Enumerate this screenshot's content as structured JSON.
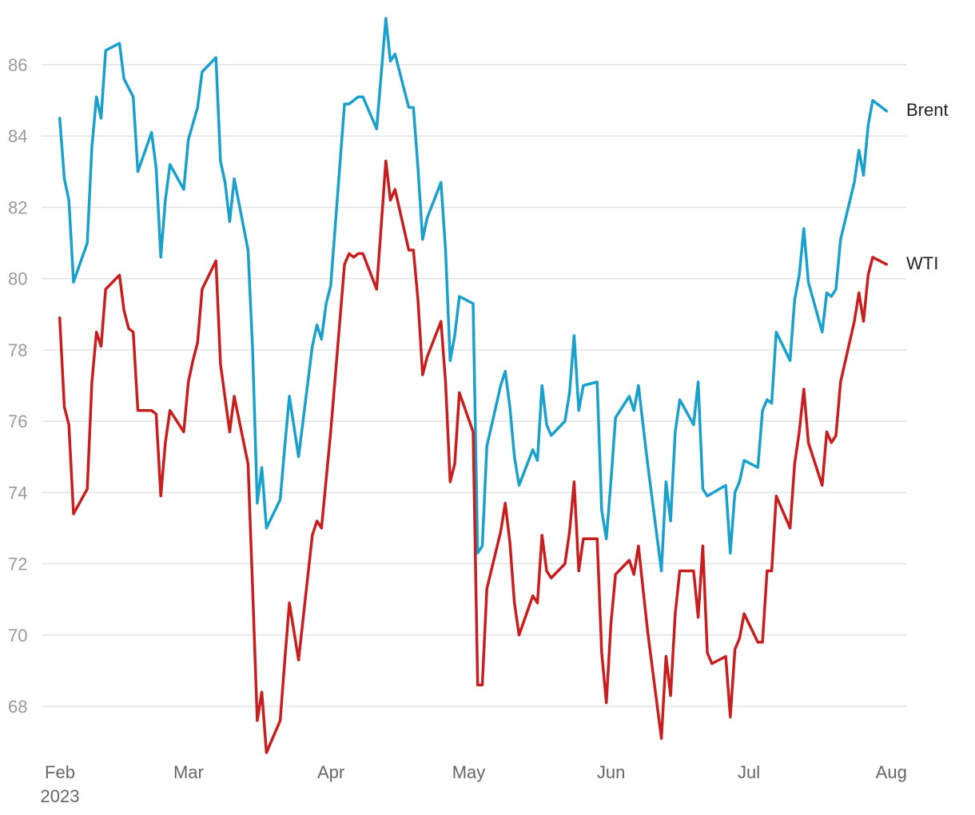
{
  "chart_data": {
    "type": "line",
    "title": "",
    "xlabel": "",
    "ylabel": "",
    "year_label": "2023",
    "x_ticks": [
      "Feb",
      "Mar",
      "Apr",
      "May",
      "Jun",
      "Jul",
      "Aug"
    ],
    "y_ticks": [
      68,
      70,
      72,
      74,
      76,
      78,
      80,
      82,
      84,
      86
    ],
    "ylim": [
      66.7,
      87.3
    ],
    "xlim": [
      0,
      182
    ],
    "grid": true,
    "x_unit": "days since Feb 1, 2023",
    "colors": {
      "Brent": "#1aa0cc",
      "WTI": "#c81e1e"
    },
    "series": [
      {
        "name": "Brent",
        "points": [
          [
            1,
            84.5
          ],
          [
            2,
            82.8
          ],
          [
            3,
            82.2
          ],
          [
            4,
            79.9
          ],
          [
            7,
            81.0
          ],
          [
            8,
            83.7
          ],
          [
            9,
            85.1
          ],
          [
            10,
            84.5
          ],
          [
            11,
            86.4
          ],
          [
            14,
            86.6
          ],
          [
            15,
            85.6
          ],
          [
            17,
            85.1
          ],
          [
            18,
            83.0
          ],
          [
            21,
            84.1
          ],
          [
            22,
            83.1
          ],
          [
            23,
            80.6
          ],
          [
            24,
            82.2
          ],
          [
            25,
            83.2
          ],
          [
            28,
            82.5
          ],
          [
            29,
            83.9
          ],
          [
            31,
            84.8
          ],
          [
            32,
            85.8
          ],
          [
            35,
            86.2
          ],
          [
            36,
            83.3
          ],
          [
            37,
            82.7
          ],
          [
            38,
            81.6
          ],
          [
            39,
            82.8
          ],
          [
            42,
            80.8
          ],
          [
            43,
            78.0
          ],
          [
            44,
            73.7
          ],
          [
            45,
            74.7
          ],
          [
            46,
            73.0
          ],
          [
            49,
            73.8
          ],
          [
            50,
            75.3
          ],
          [
            51,
            76.7
          ],
          [
            53,
            75.0
          ],
          [
            56,
            78.1
          ],
          [
            57,
            78.7
          ],
          [
            58,
            78.3
          ],
          [
            59,
            79.3
          ],
          [
            60,
            79.8
          ],
          [
            63,
            84.9
          ],
          [
            64,
            84.9
          ],
          [
            65,
            85.0
          ],
          [
            66,
            85.1
          ],
          [
            67,
            85.1
          ],
          [
            70,
            84.2
          ],
          [
            72,
            87.3
          ],
          [
            73,
            86.1
          ],
          [
            74,
            86.3
          ],
          [
            77,
            84.8
          ],
          [
            78,
            84.8
          ],
          [
            79,
            83.1
          ],
          [
            80,
            81.1
          ],
          [
            81,
            81.7
          ],
          [
            84,
            82.7
          ],
          [
            85,
            80.8
          ],
          [
            86,
            77.7
          ],
          [
            87,
            78.4
          ],
          [
            88,
            79.5
          ],
          [
            91,
            79.3
          ],
          [
            92,
            72.3
          ],
          [
            93,
            72.5
          ],
          [
            94,
            75.3
          ],
          [
            97,
            77.0
          ],
          [
            98,
            77.4
          ],
          [
            99,
            76.4
          ],
          [
            100,
            75.0
          ],
          [
            101,
            74.2
          ],
          [
            104,
            75.2
          ],
          [
            105,
            74.9
          ],
          [
            106,
            77.0
          ],
          [
            107,
            75.9
          ],
          [
            108,
            75.6
          ],
          [
            111,
            76.0
          ],
          [
            112,
            76.8
          ],
          [
            113,
            78.4
          ],
          [
            114,
            76.3
          ],
          [
            115,
            77.0
          ],
          [
            118,
            77.1
          ],
          [
            119,
            73.5
          ],
          [
            120,
            72.7
          ],
          [
            121,
            74.3
          ],
          [
            122,
            76.1
          ],
          [
            125,
            76.7
          ],
          [
            126,
            76.3
          ],
          [
            127,
            77.0
          ],
          [
            128,
            75.9
          ],
          [
            129,
            74.8
          ],
          [
            132,
            71.8
          ],
          [
            133,
            74.3
          ],
          [
            134,
            73.2
          ],
          [
            135,
            75.7
          ],
          [
            136,
            76.6
          ],
          [
            139,
            75.9
          ],
          [
            140,
            77.1
          ],
          [
            141,
            74.1
          ],
          [
            142,
            73.9
          ],
          [
            146,
            74.2
          ],
          [
            147,
            72.3
          ],
          [
            148,
            74.0
          ],
          [
            149,
            74.3
          ],
          [
            150,
            74.9
          ],
          [
            153,
            74.7
          ],
          [
            154,
            76.3
          ],
          [
            155,
            76.6
          ],
          [
            156,
            76.5
          ],
          [
            157,
            78.5
          ],
          [
            160,
            77.7
          ],
          [
            161,
            79.4
          ],
          [
            162,
            80.1
          ],
          [
            163,
            81.4
          ],
          [
            164,
            79.9
          ],
          [
            167,
            78.5
          ],
          [
            168,
            79.6
          ],
          [
            169,
            79.5
          ],
          [
            170,
            79.7
          ],
          [
            171,
            81.1
          ],
          [
            174,
            82.7
          ],
          [
            175,
            83.6
          ],
          [
            176,
            82.9
          ],
          [
            177,
            84.3
          ],
          [
            178,
            85.0
          ],
          [
            181,
            84.7
          ]
        ]
      },
      {
        "name": "WTI",
        "points": [
          [
            1,
            78.9
          ],
          [
            2,
            76.4
          ],
          [
            3,
            75.9
          ],
          [
            4,
            73.4
          ],
          [
            7,
            74.1
          ],
          [
            8,
            77.1
          ],
          [
            9,
            78.5
          ],
          [
            10,
            78.1
          ],
          [
            11,
            79.7
          ],
          [
            14,
            80.1
          ],
          [
            15,
            79.1
          ],
          [
            16,
            78.6
          ],
          [
            17,
            78.5
          ],
          [
            18,
            76.3
          ],
          [
            21,
            76.3
          ],
          [
            22,
            76.2
          ],
          [
            23,
            73.9
          ],
          [
            24,
            75.4
          ],
          [
            25,
            76.3
          ],
          [
            28,
            75.7
          ],
          [
            29,
            77.1
          ],
          [
            30,
            77.7
          ],
          [
            31,
            78.2
          ],
          [
            32,
            79.7
          ],
          [
            35,
            80.5
          ],
          [
            36,
            77.6
          ],
          [
            38,
            75.7
          ],
          [
            39,
            76.7
          ],
          [
            42,
            74.8
          ],
          [
            43,
            71.3
          ],
          [
            44,
            67.6
          ],
          [
            45,
            68.4
          ],
          [
            46,
            66.7
          ],
          [
            49,
            67.6
          ],
          [
            50,
            69.3
          ],
          [
            51,
            70.9
          ],
          [
            53,
            69.3
          ],
          [
            56,
            72.8
          ],
          [
            57,
            73.2
          ],
          [
            58,
            73.0
          ],
          [
            60,
            75.7
          ],
          [
            63,
            80.4
          ],
          [
            64,
            80.7
          ],
          [
            65,
            80.6
          ],
          [
            66,
            80.7
          ],
          [
            67,
            80.7
          ],
          [
            70,
            79.7
          ],
          [
            72,
            83.3
          ],
          [
            73,
            82.2
          ],
          [
            74,
            82.5
          ],
          [
            77,
            80.8
          ],
          [
            78,
            80.8
          ],
          [
            79,
            79.4
          ],
          [
            80,
            77.3
          ],
          [
            81,
            77.8
          ],
          [
            84,
            78.8
          ],
          [
            85,
            77.1
          ],
          [
            86,
            74.3
          ],
          [
            87,
            74.8
          ],
          [
            88,
            76.8
          ],
          [
            91,
            75.7
          ],
          [
            92,
            68.6
          ],
          [
            93,
            68.6
          ],
          [
            94,
            71.3
          ],
          [
            97,
            72.9
          ],
          [
            98,
            73.7
          ],
          [
            99,
            72.6
          ],
          [
            100,
            70.9
          ],
          [
            101,
            70.0
          ],
          [
            104,
            71.1
          ],
          [
            105,
            70.9
          ],
          [
            106,
            72.8
          ],
          [
            107,
            71.8
          ],
          [
            108,
            71.6
          ],
          [
            111,
            72.0
          ],
          [
            112,
            72.9
          ],
          [
            113,
            74.3
          ],
          [
            114,
            71.8
          ],
          [
            115,
            72.7
          ],
          [
            118,
            72.7
          ],
          [
            119,
            69.5
          ],
          [
            120,
            68.1
          ],
          [
            121,
            70.3
          ],
          [
            122,
            71.7
          ],
          [
            125,
            72.1
          ],
          [
            126,
            71.7
          ],
          [
            127,
            72.5
          ],
          [
            128,
            71.3
          ],
          [
            129,
            70.1
          ],
          [
            132,
            67.1
          ],
          [
            133,
            69.4
          ],
          [
            134,
            68.3
          ],
          [
            135,
            70.6
          ],
          [
            136,
            71.8
          ],
          [
            139,
            71.8
          ],
          [
            140,
            70.5
          ],
          [
            141,
            72.5
          ],
          [
            142,
            69.5
          ],
          [
            143,
            69.2
          ],
          [
            146,
            69.4
          ],
          [
            147,
            67.7
          ],
          [
            148,
            69.6
          ],
          [
            149,
            69.9
          ],
          [
            150,
            70.6
          ],
          [
            153,
            69.8
          ],
          [
            154,
            69.8
          ],
          [
            155,
            71.8
          ],
          [
            156,
            71.8
          ],
          [
            157,
            73.9
          ],
          [
            160,
            73.0
          ],
          [
            161,
            74.8
          ],
          [
            162,
            75.7
          ],
          [
            163,
            76.9
          ],
          [
            164,
            75.4
          ],
          [
            167,
            74.2
          ],
          [
            168,
            75.7
          ],
          [
            169,
            75.4
          ],
          [
            170,
            75.6
          ],
          [
            171,
            77.1
          ],
          [
            174,
            78.8
          ],
          [
            175,
            79.6
          ],
          [
            176,
            78.8
          ],
          [
            177,
            80.1
          ],
          [
            178,
            80.6
          ],
          [
            181,
            80.4
          ]
        ]
      }
    ]
  }
}
